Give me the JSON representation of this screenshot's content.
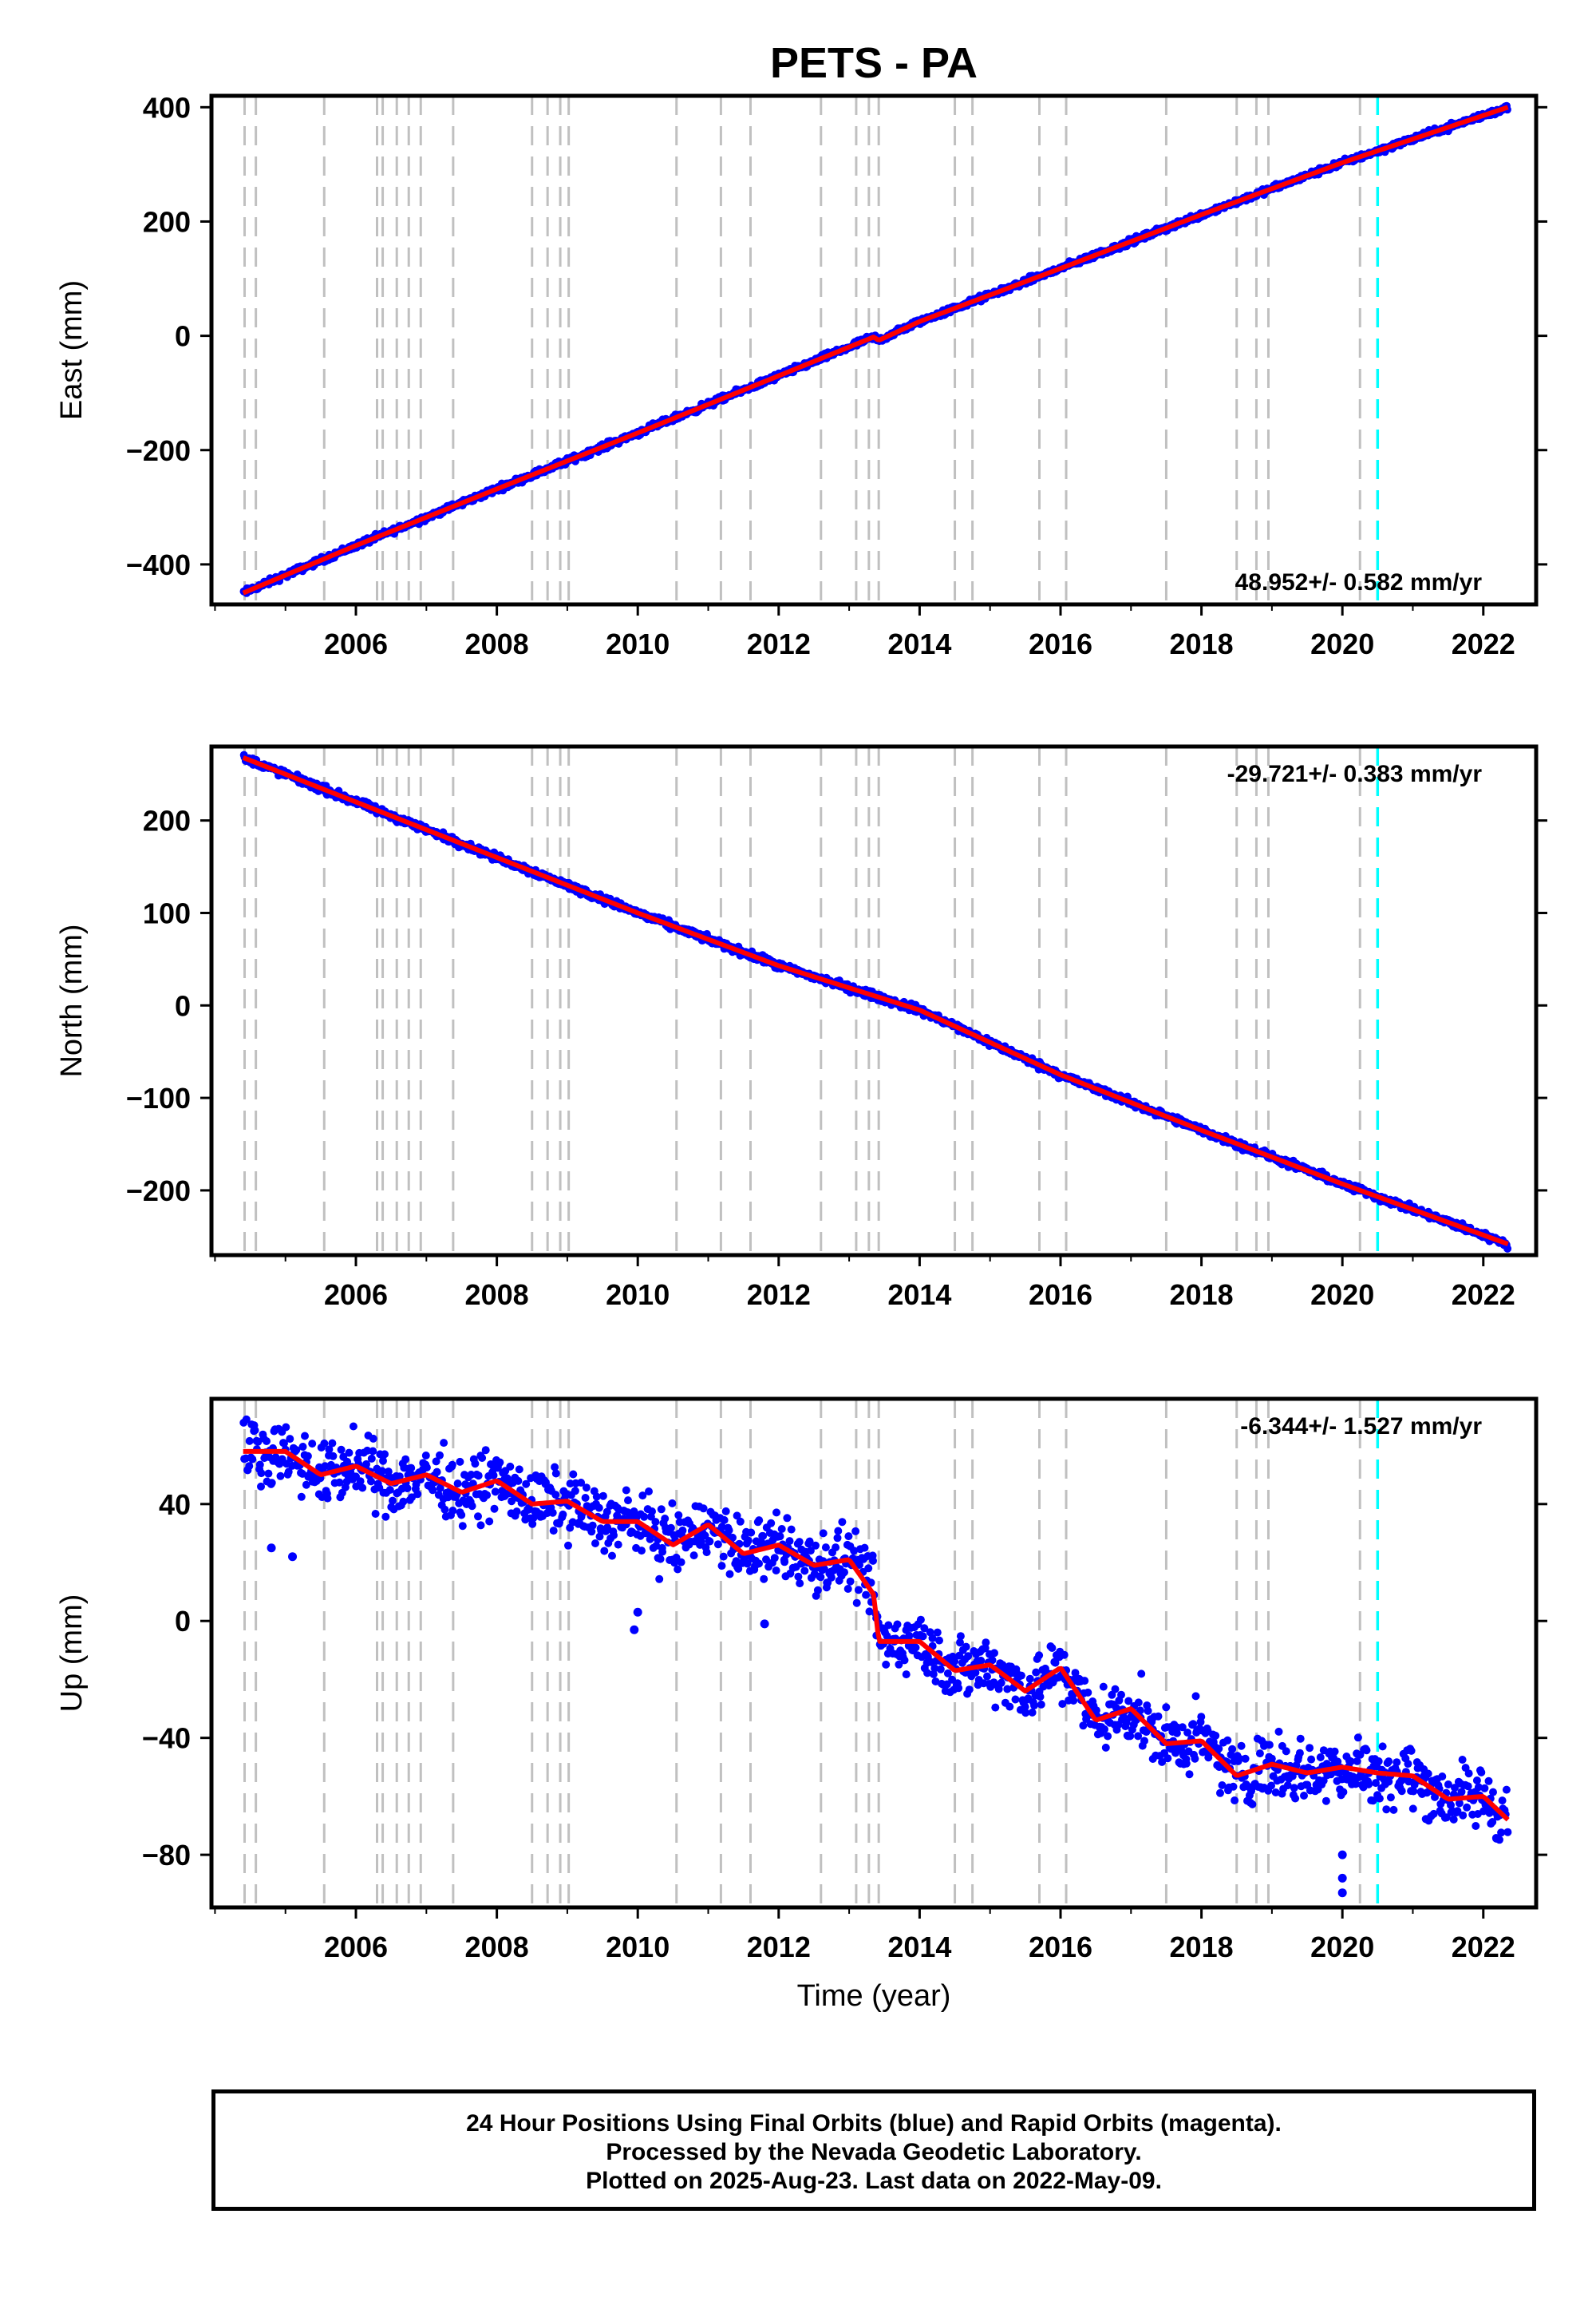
{
  "title": "PETS - PA",
  "xlabel": "Time (year)",
  "colors": {
    "data_points": "#0000ff",
    "model_line": "#ff0000",
    "equipment_change": "#c0c0c0",
    "earthquake_line": "#00ffff",
    "frame": "#000000"
  },
  "caption": {
    "line1": "24 Hour Positions Using Final Orbits (blue) and Rapid Orbits (magenta).",
    "line2": "Processed by the Nevada Geodetic Laboratory.",
    "line3": "Plotted on 2025-Aug-23. Last data on 2022-May-09."
  },
  "chart_data": [
    {
      "type": "scatter",
      "ylabel": "East (mm)",
      "rate_label": "48.952+/- 0.582 mm/yr",
      "rate_position": "bottom-right",
      "xlim": [
        2003.95,
        2022.75
      ],
      "ylim": [
        -470,
        420
      ],
      "xticks": [
        2006,
        2008,
        2010,
        2012,
        2014,
        2016,
        2018,
        2020,
        2022
      ],
      "yticks": [
        -400,
        -200,
        0,
        200,
        400
      ],
      "data_start": 2004.4,
      "data_end": 2022.35,
      "anchors": [
        {
          "x": 2004.4,
          "y": -450
        },
        {
          "x": 2006.0,
          "y": -367
        },
        {
          "x": 2008.0,
          "y": -268
        },
        {
          "x": 2010.0,
          "y": -170
        },
        {
          "x": 2012.0,
          "y": -70
        },
        {
          "x": 2013.35,
          "y": -2
        },
        {
          "x": 2013.42,
          "y": -8
        },
        {
          "x": 2014.0,
          "y": 25
        },
        {
          "x": 2016.0,
          "y": 118
        },
        {
          "x": 2018.0,
          "y": 212
        },
        {
          "x": 2020.0,
          "y": 303
        },
        {
          "x": 2022.35,
          "y": 400
        }
      ],
      "scatter_spread": 4,
      "outliers": []
    },
    {
      "type": "scatter",
      "ylabel": "North (mm)",
      "rate_label": "-29.721+/- 0.383 mm/yr",
      "rate_position": "top-right",
      "xlim": [
        2003.95,
        2022.75
      ],
      "ylim": [
        -270,
        280
      ],
      "xticks": [
        2006,
        2008,
        2010,
        2012,
        2014,
        2016,
        2018,
        2020,
        2022
      ],
      "yticks": [
        -200,
        -100,
        0,
        100,
        200
      ],
      "data_start": 2004.4,
      "data_end": 2022.35,
      "anchors": [
        {
          "x": 2004.4,
          "y": 268
        },
        {
          "x": 2006.0,
          "y": 220
        },
        {
          "x": 2008.0,
          "y": 160
        },
        {
          "x": 2010.0,
          "y": 100
        },
        {
          "x": 2012.0,
          "y": 43
        },
        {
          "x": 2014.0,
          "y": -5
        },
        {
          "x": 2016.0,
          "y": -75
        },
        {
          "x": 2018.0,
          "y": -135
        },
        {
          "x": 2020.0,
          "y": -193
        },
        {
          "x": 2022.35,
          "y": -258
        }
      ],
      "scatter_spread": 3,
      "outliers": []
    },
    {
      "type": "scatter",
      "ylabel": "Up (mm)",
      "rate_label": "-6.344+/- 1.527 mm/yr",
      "rate_position": "top-right",
      "xlim": [
        2003.95,
        2022.75
      ],
      "ylim": [
        -98,
        76
      ],
      "xticks": [
        2006,
        2008,
        2010,
        2012,
        2014,
        2016,
        2018,
        2020,
        2022
      ],
      "yticks": [
        -80,
        -40,
        0,
        40
      ],
      "data_start": 2004.4,
      "data_end": 2022.35,
      "anchors": [
        {
          "x": 2004.4,
          "y": 58
        },
        {
          "x": 2005.0,
          "y": 58
        },
        {
          "x": 2005.5,
          "y": 50
        },
        {
          "x": 2006.0,
          "y": 53
        },
        {
          "x": 2006.5,
          "y": 47
        },
        {
          "x": 2007.0,
          "y": 50
        },
        {
          "x": 2007.5,
          "y": 44
        },
        {
          "x": 2008.0,
          "y": 48
        },
        {
          "x": 2008.5,
          "y": 40
        },
        {
          "x": 2009.0,
          "y": 41
        },
        {
          "x": 2009.5,
          "y": 34
        },
        {
          "x": 2010.0,
          "y": 34
        },
        {
          "x": 2010.5,
          "y": 26
        },
        {
          "x": 2011.0,
          "y": 33
        },
        {
          "x": 2011.5,
          "y": 23
        },
        {
          "x": 2012.0,
          "y": 26
        },
        {
          "x": 2012.5,
          "y": 19
        },
        {
          "x": 2013.0,
          "y": 21
        },
        {
          "x": 2013.35,
          "y": 9
        },
        {
          "x": 2013.42,
          "y": -7
        },
        {
          "x": 2014.0,
          "y": -7
        },
        {
          "x": 2014.5,
          "y": -17
        },
        {
          "x": 2015.0,
          "y": -15
        },
        {
          "x": 2015.5,
          "y": -24
        },
        {
          "x": 2016.0,
          "y": -16
        },
        {
          "x": 2016.5,
          "y": -34
        },
        {
          "x": 2017.0,
          "y": -30
        },
        {
          "x": 2017.5,
          "y": -42
        },
        {
          "x": 2018.0,
          "y": -41
        },
        {
          "x": 2018.5,
          "y": -53
        },
        {
          "x": 2019.0,
          "y": -49
        },
        {
          "x": 2019.5,
          "y": -52
        },
        {
          "x": 2020.0,
          "y": -50
        },
        {
          "x": 2020.5,
          "y": -52
        },
        {
          "x": 2021.0,
          "y": -53
        },
        {
          "x": 2021.5,
          "y": -61
        },
        {
          "x": 2022.0,
          "y": -60
        },
        {
          "x": 2022.35,
          "y": -68
        }
      ],
      "scatter_spread": 8,
      "outliers": [
        {
          "x": 2004.8,
          "y": 25
        },
        {
          "x": 2005.1,
          "y": 22
        },
        {
          "x": 2009.95,
          "y": -3
        },
        {
          "x": 2010.0,
          "y": 3
        },
        {
          "x": 2011.8,
          "y": -1
        },
        {
          "x": 2020.0,
          "y": -80
        },
        {
          "x": 2020.0,
          "y": -88
        },
        {
          "x": 2020.0,
          "y": -93
        }
      ]
    }
  ],
  "equipment_change_years": [
    2004.42,
    2004.58,
    2005.55,
    2006.3,
    2006.38,
    2006.58,
    2006.75,
    2006.92,
    2007.38,
    2008.5,
    2008.72,
    2008.9,
    2009.02,
    2010.55,
    2011.18,
    2011.6,
    2012.6,
    2013.1,
    2013.28,
    2013.42,
    2014.5,
    2014.75,
    2015.7,
    2016.08,
    2017.5,
    2018.5,
    2018.78,
    2018.95,
    2020.25
  ],
  "earthquake_years": [
    2020.5
  ]
}
